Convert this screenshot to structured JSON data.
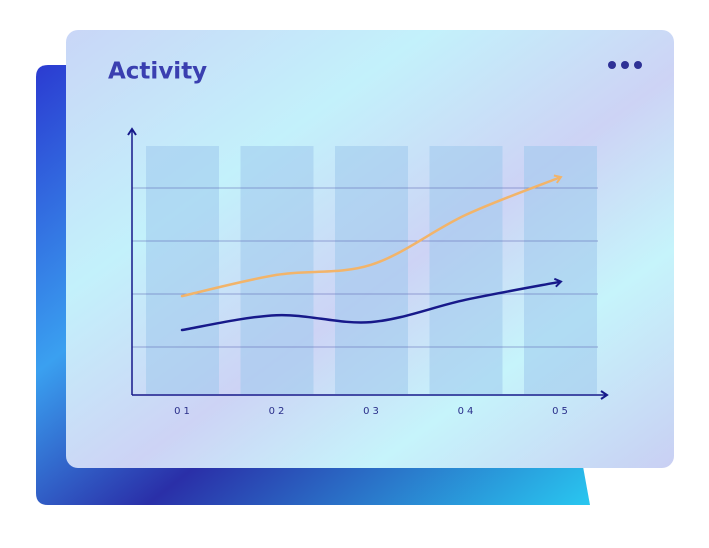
{
  "chart_data": {
    "type": "line",
    "title": "Activity",
    "categories": [
      "01",
      "02",
      "03",
      "04",
      "05"
    ],
    "series": [
      {
        "color": "#f2b46a",
        "values": [
          1.96,
          2.36,
          2.55,
          3.49,
          4.2
        ]
      },
      {
        "color": "#17198a",
        "values": [
          1.32,
          1.6,
          1.47,
          1.89,
          2.23
        ]
      }
    ],
    "ylim": [
      0,
      5
    ],
    "yticks": [
      1,
      2,
      3,
      4
    ],
    "grid": true
  }
}
